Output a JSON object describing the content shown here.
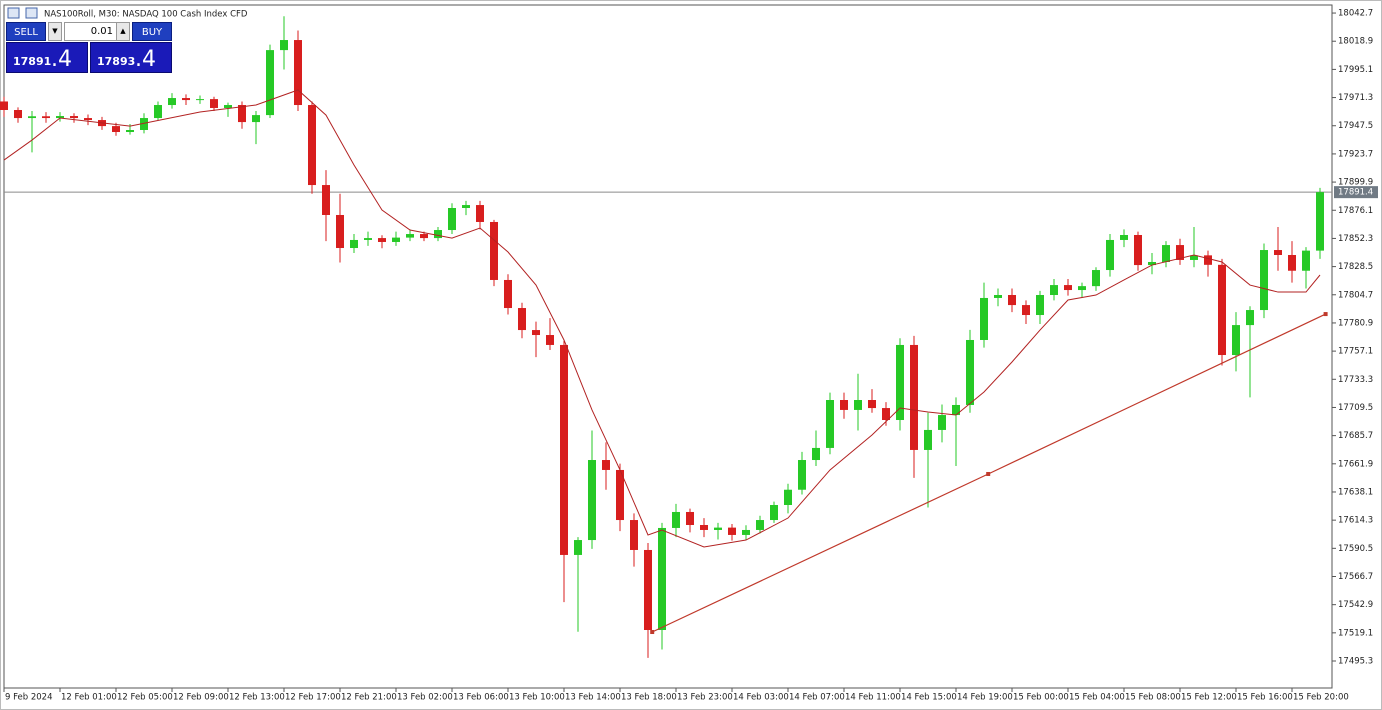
{
  "header": {
    "title": "NAS100Roll, M30:  NASDAQ 100 Cash Index CFD"
  },
  "trade_panel": {
    "sell": "SELL",
    "buy": "BUY",
    "volume": "0.01",
    "bid_main": "17891",
    "bid_frac": ".4",
    "ask_main": "17893",
    "ask_frac": ".4"
  },
  "chart_data": {
    "type": "candlestick",
    "up_color": "#26c926",
    "down_color": "#d81e1e",
    "categories": [
      "9 Feb 2024",
      null,
      null,
      null,
      "12 Feb 01:00",
      null,
      null,
      null,
      "12 Feb 05:00",
      null,
      null,
      null,
      "12 Feb 09:00",
      null,
      null,
      null,
      "12 Feb 13:00",
      null,
      null,
      null,
      "12 Feb 17:00",
      null,
      null,
      null,
      "12 Feb 21:00",
      null,
      null,
      null,
      "13 Feb 02:00",
      null,
      null,
      null,
      "13 Feb 06:00",
      null,
      null,
      null,
      "13 Feb 10:00",
      null,
      null,
      null,
      "13 Feb 14:00",
      null,
      null,
      null,
      "13 Feb 18:00",
      null,
      null,
      null,
      "13 Feb 23:00",
      null,
      null,
      null,
      "14 Feb 03:00",
      null,
      null,
      null,
      "14 Feb 07:00",
      null,
      null,
      null,
      "14 Feb 11:00",
      null,
      null,
      null,
      "14 Feb 15:00",
      null,
      null,
      null,
      "14 Feb 19:00",
      null,
      null,
      null,
      "15 Feb 00:00",
      null,
      null,
      null,
      "15 Feb 04:00",
      null,
      null,
      null,
      "15 Feb 08:00",
      null,
      null,
      null,
      "15 Feb 12:00",
      null,
      null,
      null,
      "15 Feb 16:00",
      null,
      null,
      null,
      "15 Feb 20:00",
      null,
      null
    ],
    "ohlc": [
      [
        17968,
        17972,
        17955,
        17960.8
      ],
      [
        17960.8,
        17963,
        17950,
        17954.0
      ],
      [
        17954,
        17960,
        17925,
        17955.5
      ],
      [
        17955.5,
        17959,
        17950,
        17954.0
      ],
      [
        17954,
        17959,
        17951,
        17955.7
      ],
      [
        17955.7,
        17958,
        17950,
        17954.0
      ],
      [
        17954,
        17957,
        17948,
        17952.3
      ],
      [
        17952.3,
        17955,
        17944,
        17947.2
      ],
      [
        17947.2,
        17950,
        17939,
        17942.2
      ],
      [
        17942.2,
        17949,
        17940,
        17943.9
      ],
      [
        17943.9,
        17958,
        17941,
        17954.0
      ],
      [
        17954,
        17968,
        17952,
        17965.0
      ],
      [
        17965,
        17975,
        17962,
        17970.9
      ],
      [
        17970.9,
        17974,
        17965,
        17969.2
      ],
      [
        17969.2,
        17973,
        17966,
        17970.0
      ],
      [
        17970,
        17972,
        17960,
        17962.5
      ],
      [
        17962.5,
        17967,
        17955,
        17965.0
      ],
      [
        17965,
        17968,
        17945,
        17950.6
      ],
      [
        17950.6,
        17960,
        17932,
        17956.5
      ],
      [
        17956.5,
        18016,
        17954,
        18011.4
      ],
      [
        18011.4,
        18040,
        17995,
        18019.9
      ],
      [
        18019.9,
        18028,
        17960,
        17965.0
      ],
      [
        17965,
        17968,
        17890,
        17897.4
      ],
      [
        17897.4,
        17910,
        17850,
        17872.1
      ],
      [
        17872.1,
        17890,
        17832,
        17844.2
      ],
      [
        17844.2,
        17856,
        17840,
        17851.0
      ],
      [
        17851,
        17858,
        17846,
        17852.6
      ],
      [
        17852.6,
        17855,
        17844,
        17849.3
      ],
      [
        17849.3,
        17858,
        17846,
        17853.0
      ],
      [
        17853,
        17860,
        17850,
        17856.0
      ],
      [
        17856,
        17858,
        17850,
        17852.6
      ],
      [
        17852.6,
        17862,
        17850,
        17859.4
      ],
      [
        17859.4,
        17882,
        17856,
        17878.0
      ],
      [
        17878,
        17884,
        17872,
        17880.5
      ],
      [
        17880.5,
        17884,
        17860,
        17866.2
      ],
      [
        17866.2,
        17868,
        17812,
        17817.2
      ],
      [
        17817.2,
        17822,
        17788,
        17793.5
      ],
      [
        17793.5,
        17798,
        17768,
        17774.9
      ],
      [
        17774.9,
        17782,
        17752,
        17770.7
      ],
      [
        17770.7,
        17785,
        17758,
        17762.3
      ],
      [
        17762.3,
        17766,
        17545,
        17584.9
      ],
      [
        17584.9,
        17600,
        17520,
        17597.5
      ],
      [
        17597.5,
        17690,
        17590,
        17665.1
      ],
      [
        17665.1,
        17680,
        17640,
        17656.7
      ],
      [
        17656.7,
        17662,
        17605,
        17614.4
      ],
      [
        17614.4,
        17620,
        17575,
        17589.1
      ],
      [
        17589.1,
        17595,
        17498,
        17521.5
      ],
      [
        17521.5,
        17612,
        17505,
        17607.7
      ],
      [
        17607.7,
        17628,
        17600,
        17621.2
      ],
      [
        17621.2,
        17624,
        17604,
        17610.2
      ],
      [
        17610.2,
        17616,
        17600,
        17606.0
      ],
      [
        17606,
        17612,
        17598,
        17608.0
      ],
      [
        17608,
        17611,
        17597,
        17601.8
      ],
      [
        17601.8,
        17610,
        17598,
        17606.0
      ],
      [
        17606,
        17618,
        17603,
        17614.4
      ],
      [
        17614.4,
        17630,
        17612,
        17627.1
      ],
      [
        17627.1,
        17645,
        17620,
        17640.0
      ],
      [
        17640,
        17672,
        17636,
        17665.1
      ],
      [
        17665.1,
        17690,
        17660,
        17675.3
      ],
      [
        17675.3,
        17722,
        17670,
        17715.8
      ],
      [
        17715.8,
        17722,
        17700,
        17707.4
      ],
      [
        17707.4,
        17738,
        17690,
        17715.8
      ],
      [
        17715.8,
        17725,
        17705,
        17709.0
      ],
      [
        17709,
        17714,
        17694,
        17698.9
      ],
      [
        17698.9,
        17768,
        17690,
        17762.3
      ],
      [
        17762.3,
        17770,
        17650,
        17673.6
      ],
      [
        17673.6,
        17705,
        17625,
        17690.5
      ],
      [
        17690.5,
        17712,
        17680,
        17703.1
      ],
      [
        17703.1,
        17718,
        17660,
        17711.6
      ],
      [
        17711.6,
        17775,
        17705,
        17766.5
      ],
      [
        17766.5,
        17815,
        17760,
        17802.0
      ],
      [
        17802,
        17810,
        17795,
        17804.5
      ],
      [
        17804.5,
        17810,
        17790,
        17796.0
      ],
      [
        17796,
        17800,
        17780,
        17787.6
      ],
      [
        17787.6,
        17808,
        17780,
        17804.5
      ],
      [
        17804.5,
        17818,
        17800,
        17812.9
      ],
      [
        17812.9,
        17818,
        17804,
        17808.7
      ],
      [
        17808.7,
        17815,
        17802,
        17812.0
      ],
      [
        17812,
        17828,
        17808,
        17825.6
      ],
      [
        17825.6,
        17856,
        17820,
        17851.0
      ],
      [
        17851,
        17860,
        17845,
        17855.2
      ],
      [
        17855.2,
        17858,
        17825,
        17829.8
      ],
      [
        17829.8,
        17840,
        17822,
        17832.4
      ],
      [
        17832.4,
        17850,
        17828,
        17846.7
      ],
      [
        17846.7,
        17852,
        17830,
        17834.1
      ],
      [
        17834.1,
        17862,
        17828,
        17838.0
      ],
      [
        17838,
        17842,
        17820,
        17830.0
      ],
      [
        17830,
        17835,
        17745,
        17753.8
      ],
      [
        17753.8,
        17790,
        17740,
        17779.1
      ],
      [
        17779.1,
        17795,
        17718,
        17791.8
      ],
      [
        17791.8,
        17848,
        17785,
        17842.5
      ],
      [
        17842.5,
        17862,
        17825,
        17838.3
      ],
      [
        17838.3,
        17850,
        17815,
        17825.0
      ],
      [
        17825,
        17845,
        17810,
        17842.0
      ],
      [
        17842,
        17895,
        17835,
        17891.4
      ]
    ],
    "moving_average": {
      "color": "#b22222",
      "x": [
        0,
        2,
        4,
        9,
        14,
        18,
        21,
        23,
        25,
        27,
        29,
        32,
        34,
        36,
        38,
        40,
        42,
        44,
        46,
        47,
        50,
        53,
        56,
        59,
        62,
        64,
        66,
        68,
        70,
        72,
        74,
        76,
        78,
        80,
        82,
        85,
        87,
        89,
        91,
        93,
        94
      ],
      "values": [
        17918.5,
        17935.4,
        17954.0,
        17947.2,
        17959.1,
        17965.0,
        17977.7,
        17956.5,
        17914.3,
        17876.3,
        17859.4,
        17852.6,
        17861.1,
        17840.8,
        17812.9,
        17766.5,
        17707.4,
        17656.7,
        17601.8,
        17606.0,
        17591.6,
        17597.5,
        17616.1,
        17656.7,
        17686.2,
        17709.0,
        17705.7,
        17703.1,
        17722.6,
        17747.9,
        17774.9,
        17800.3,
        17804.5,
        17817.2,
        17829.8,
        17838.3,
        17832.4,
        17812.9,
        17807.0,
        17807.0,
        17821.4
      ]
    },
    "trendline": {
      "color": "#c0392b",
      "x": [
        46.3,
        70.3,
        94.4
      ],
      "values": [
        17519.8,
        17653.3,
        17788.4
      ]
    },
    "last_price": 17891.4,
    "ylim": [
      17472.5,
      18049.5
    ],
    "yticks": [
      18042.7,
      18018.9,
      17995.1,
      17971.3,
      17947.5,
      17923.7,
      17899.9,
      17876.1,
      17852.3,
      17828.5,
      17804.7,
      17780.9,
      17757.1,
      17733.3,
      17709.5,
      17685.7,
      17661.9,
      17638.1,
      17614.3,
      17590.5,
      17566.7,
      17542.9,
      17519.1,
      17495.3
    ]
  }
}
